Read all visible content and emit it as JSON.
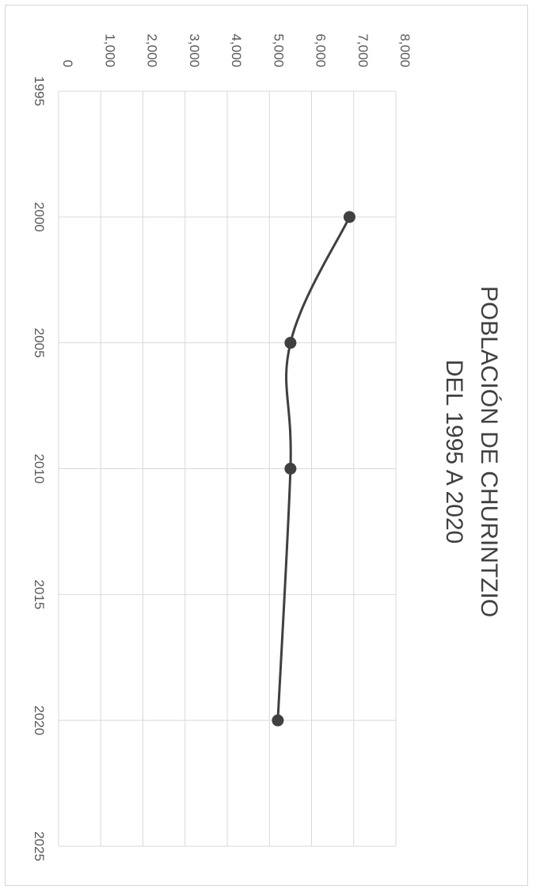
{
  "chart_data": {
    "type": "line",
    "title_lines": [
      "POBLACIÓN DE CHURINTZIO",
      "DEL 1995 A 2020"
    ],
    "xlabel": "",
    "ylabel": "",
    "x": [
      2000,
      2005,
      2010,
      2020
    ],
    "series": [
      {
        "values": [
          6900,
          5500,
          5500,
          5200
        ]
      }
    ],
    "xlim": [
      1995,
      2025
    ],
    "ylim": [
      0,
      8000
    ],
    "x_ticks": [
      1995,
      2000,
      2005,
      2010,
      2015,
      2020,
      2025
    ],
    "y_ticks": [
      0,
      1000,
      2000,
      3000,
      4000,
      5000,
      6000,
      7000,
      8000
    ],
    "y_tick_labels": [
      "0",
      "1,000",
      "2,000",
      "3,000",
      "4,000",
      "5,000",
      "6,000",
      "7,000",
      "8,000"
    ],
    "grid": true,
    "orientation": "rotated 90° clockwise",
    "series_color": "#404040",
    "grid_color": "#d9d9d9"
  }
}
